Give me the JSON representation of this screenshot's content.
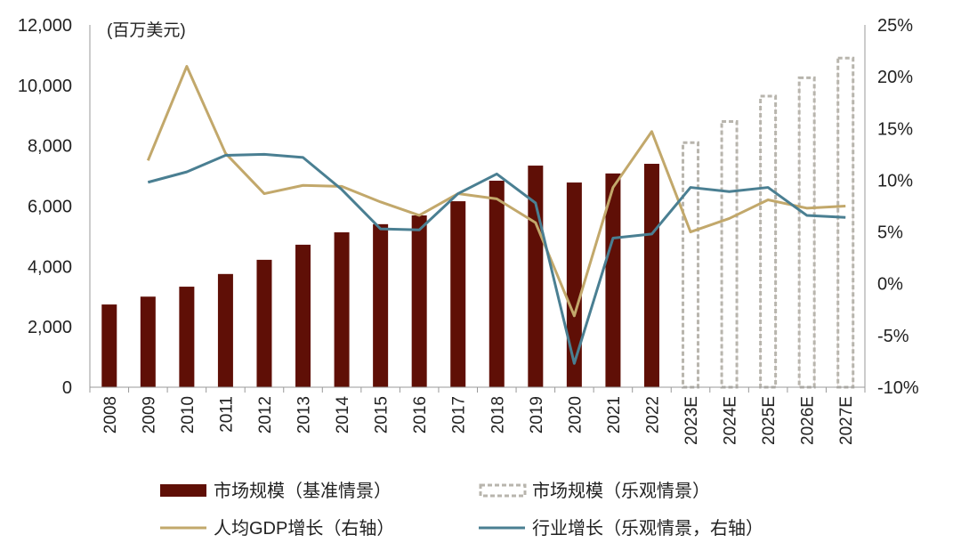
{
  "chart_data": {
    "type": "bar+line",
    "unit_label": "(百万美元)",
    "categories": [
      "2008",
      "2009",
      "2010",
      "2011",
      "2012",
      "2013",
      "2014",
      "2015",
      "2016",
      "2017",
      "2018",
      "2019",
      "2020",
      "2021",
      "2022",
      "2023E",
      "2024E",
      "2025E",
      "2026E",
      "2027E"
    ],
    "left_axis": {
      "min": 0,
      "max": 12000,
      "ticks": [
        0,
        2000,
        4000,
        6000,
        8000,
        10000,
        12000
      ],
      "tick_labels": [
        "0",
        "2,000",
        "4,000",
        "6,000",
        "8,000",
        "10,000",
        "12,000"
      ]
    },
    "right_axis": {
      "min": -10,
      "max": 25,
      "ticks": [
        -10,
        -5,
        0,
        5,
        10,
        15,
        20,
        25
      ],
      "tick_labels": [
        "-10%",
        "-5%",
        "0%",
        "5%",
        "10%",
        "15%",
        "20%",
        "25%"
      ]
    },
    "series": [
      {
        "name": "市场规模（基准情景）",
        "type": "bar",
        "axis": "left",
        "color": "#5f0f06",
        "values": [
          2740,
          3000,
          3330,
          3750,
          4220,
          4720,
          5130,
          5400,
          5690,
          6160,
          6840,
          7340,
          6780,
          7080,
          7400,
          8050,
          8700,
          9350,
          9950,
          10450
        ]
      },
      {
        "name": "市场规模（乐观情景）",
        "type": "bar-dashed",
        "axis": "left",
        "color": "#b8b5ad",
        "values": [
          null,
          null,
          null,
          null,
          null,
          null,
          null,
          null,
          null,
          null,
          null,
          null,
          null,
          null,
          null,
          8100,
          8800,
          9640,
          10250,
          10900
        ]
      },
      {
        "name": "人均GDP增长（右轴）",
        "type": "line",
        "axis": "right",
        "color": "#c2a86b",
        "values": [
          null,
          11.9,
          21.0,
          12.6,
          8.7,
          9.5,
          9.4,
          7.9,
          6.6,
          8.7,
          8.2,
          5.9,
          -3.1,
          9.3,
          14.7,
          5.0,
          6.3,
          8.1,
          7.3,
          7.5
        ]
      },
      {
        "name": "行业增长（乐观情景，右轴）",
        "type": "line",
        "axis": "right",
        "color": "#4a7f92",
        "values": [
          null,
          9.8,
          10.8,
          12.4,
          12.5,
          12.2,
          9.1,
          5.3,
          5.2,
          8.7,
          10.6,
          7.8,
          -7.7,
          4.4,
          4.8,
          9.3,
          8.9,
          9.3,
          6.6,
          6.4
        ]
      }
    ],
    "legend_position": "bottom",
    "grid": false
  }
}
